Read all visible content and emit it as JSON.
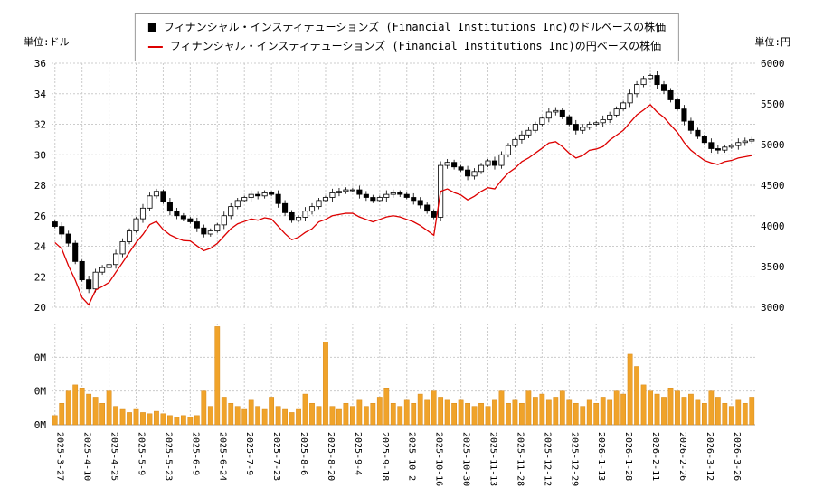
{
  "page": {
    "background": "#ffffff"
  },
  "legend": {
    "items": [
      {
        "marker": "candlestick-black-square",
        "color": "#000000",
        "label": "フィナンシャル・インスティテューションズ (Financial Institutions Inc)のドルベースの株価"
      },
      {
        "marker": "red-line",
        "color": "#dd0000",
        "label": "フィナンシャル・インスティテューションズ (Financial Institutions Inc)の円ベースの株価"
      }
    ]
  },
  "axes": {
    "left_unit": "単位:ドル",
    "right_unit": "単位:円",
    "left_ticks": [
      20,
      22,
      24,
      26,
      28,
      30,
      32,
      34,
      36
    ],
    "right_ticks": [
      3000,
      3500,
      4000,
      4500,
      5000,
      5500,
      6000
    ],
    "volume_tick_labels": [
      "0M",
      "0M",
      "0M"
    ],
    "volume_tick_values_m": [
      1.1,
      0.55,
      0
    ]
  },
  "chart_data": {
    "type": "candlestick+line+bar",
    "title": "",
    "left_axis_range": [
      20,
      36
    ],
    "right_axis_range": [
      3000,
      6000
    ],
    "volume_range_millions": [
      0,
      1.65
    ],
    "grid": true,
    "legend_position": "top-center",
    "x_tick_labels": [
      "2025-3-27",
      "2025-4-10",
      "2025-4-25",
      "2025-5-9",
      "2025-5-23",
      "2025-6-9",
      "2025-6-24",
      "2025-7-9",
      "2025-7-23",
      "2025-8-6",
      "2025-8-20",
      "2025-9-4",
      "2025-9-18",
      "2025-10-2",
      "2025-10-16",
      "2025-10-30",
      "2025-11-13",
      "2025-11-28",
      "2025-12-12",
      "2025-12-29",
      "2026-1-13",
      "2026-1-28",
      "2026-2-11",
      "2026-2-26",
      "2026-3-12",
      "2026-3-26"
    ],
    "points_per_tick": 4,
    "series": [
      {
        "name": "フィナンシャル・インスティテューションズ (Financial Institutions Inc)のドルベースの株価",
        "type": "candlestick",
        "axis": "left",
        "color": "#000000",
        "up_fill": "#ffffff",
        "down_fill": "#000000",
        "close_usd": [
          25.3,
          24.8,
          24.2,
          23.0,
          21.8,
          21.2,
          22.3,
          22.6,
          22.8,
          23.5,
          24.3,
          25.0,
          25.8,
          26.5,
          27.3,
          27.6,
          26.9,
          26.3,
          26.0,
          25.8,
          25.6,
          25.2,
          24.8,
          25.0,
          25.4,
          26.0,
          26.6,
          27.0,
          27.2,
          27.4,
          27.3,
          27.5,
          27.4,
          26.8,
          26.2,
          25.7,
          25.9,
          26.3,
          26.6,
          27.0,
          27.2,
          27.5,
          27.6,
          27.7,
          27.7,
          27.4,
          27.2,
          27.0,
          27.2,
          27.4,
          27.5,
          27.4,
          27.2,
          27.0,
          26.7,
          26.3,
          25.9,
          29.3,
          29.5,
          29.2,
          29.0,
          28.6,
          28.9,
          29.3,
          29.6,
          29.3,
          30.0,
          30.6,
          31.0,
          31.3,
          31.6,
          32.0,
          32.4,
          32.8,
          32.9,
          32.5,
          32.0,
          31.6,
          31.8,
          32.0,
          32.1,
          32.3,
          32.6,
          33.0,
          33.4,
          34.0,
          34.6,
          35.0,
          35.2,
          34.6,
          34.2,
          33.6,
          33.0,
          32.2,
          31.6,
          31.2,
          30.8,
          30.4,
          30.3,
          30.5,
          30.6,
          30.8,
          30.9,
          31.0
        ]
      },
      {
        "name": "フィナンシャル・インスティテューションズ (Financial Institutions Inc)の円ベースの株価",
        "type": "line",
        "axis": "right",
        "color": "#dd0000",
        "close_jpy": [
          3795,
          3720,
          3510,
          3335,
          3120,
          3030,
          3210,
          3255,
          3305,
          3430,
          3550,
          3675,
          3795,
          3895,
          4015,
          4055,
          3955,
          3890,
          3850,
          3820,
          3815,
          3755,
          3695,
          3725,
          3785,
          3875,
          3965,
          4025,
          4055,
          4085,
          4070,
          4100,
          4085,
          3995,
          3905,
          3830,
          3860,
          3920,
          3965,
          4050,
          4080,
          4125,
          4140,
          4155,
          4155,
          4110,
          4080,
          4050,
          4080,
          4110,
          4125,
          4110,
          4080,
          4050,
          4005,
          3945,
          3885,
          4425,
          4455,
          4410,
          4380,
          4320,
          4365,
          4425,
          4470,
          4455,
          4560,
          4650,
          4710,
          4790,
          4835,
          4895,
          4955,
          5020,
          5035,
          4975,
          4895,
          4835,
          4865,
          4930,
          4945,
          4975,
          5055,
          5115,
          5175,
          5270,
          5365,
          5425,
          5490,
          5400,
          5335,
          5240,
          5150,
          5025,
          4930,
          4865,
          4805,
          4775,
          4755,
          4790,
          4805,
          4835,
          4850,
          4865
        ]
      },
      {
        "name": "出来高",
        "type": "bar",
        "axis": "volume",
        "color": "#f0a32a",
        "stroke": "#d88a18",
        "volume_millions": [
          0.15,
          0.35,
          0.55,
          0.65,
          0.6,
          0.5,
          0.45,
          0.35,
          0.55,
          0.3,
          0.25,
          0.2,
          0.25,
          0.2,
          0.18,
          0.22,
          0.18,
          0.15,
          0.12,
          0.15,
          0.12,
          0.15,
          0.55,
          0.3,
          1.6,
          0.45,
          0.35,
          0.3,
          0.25,
          0.4,
          0.3,
          0.25,
          0.45,
          0.3,
          0.25,
          0.2,
          0.25,
          0.5,
          0.35,
          0.3,
          1.35,
          0.3,
          0.25,
          0.35,
          0.3,
          0.4,
          0.3,
          0.35,
          0.45,
          0.6,
          0.35,
          0.3,
          0.4,
          0.35,
          0.5,
          0.4,
          0.55,
          0.45,
          0.4,
          0.35,
          0.4,
          0.35,
          0.3,
          0.35,
          0.3,
          0.4,
          0.55,
          0.35,
          0.4,
          0.35,
          0.55,
          0.45,
          0.5,
          0.4,
          0.45,
          0.55,
          0.4,
          0.35,
          0.3,
          0.4,
          0.35,
          0.45,
          0.4,
          0.55,
          0.5,
          1.15,
          0.95,
          0.65,
          0.55,
          0.5,
          0.45,
          0.6,
          0.55,
          0.45,
          0.5,
          0.4,
          0.35,
          0.55,
          0.45,
          0.35,
          0.3,
          0.4,
          0.35,
          0.45
        ]
      }
    ],
    "colors": {
      "grid": "#cccccc",
      "axis_text": "#000000"
    }
  }
}
